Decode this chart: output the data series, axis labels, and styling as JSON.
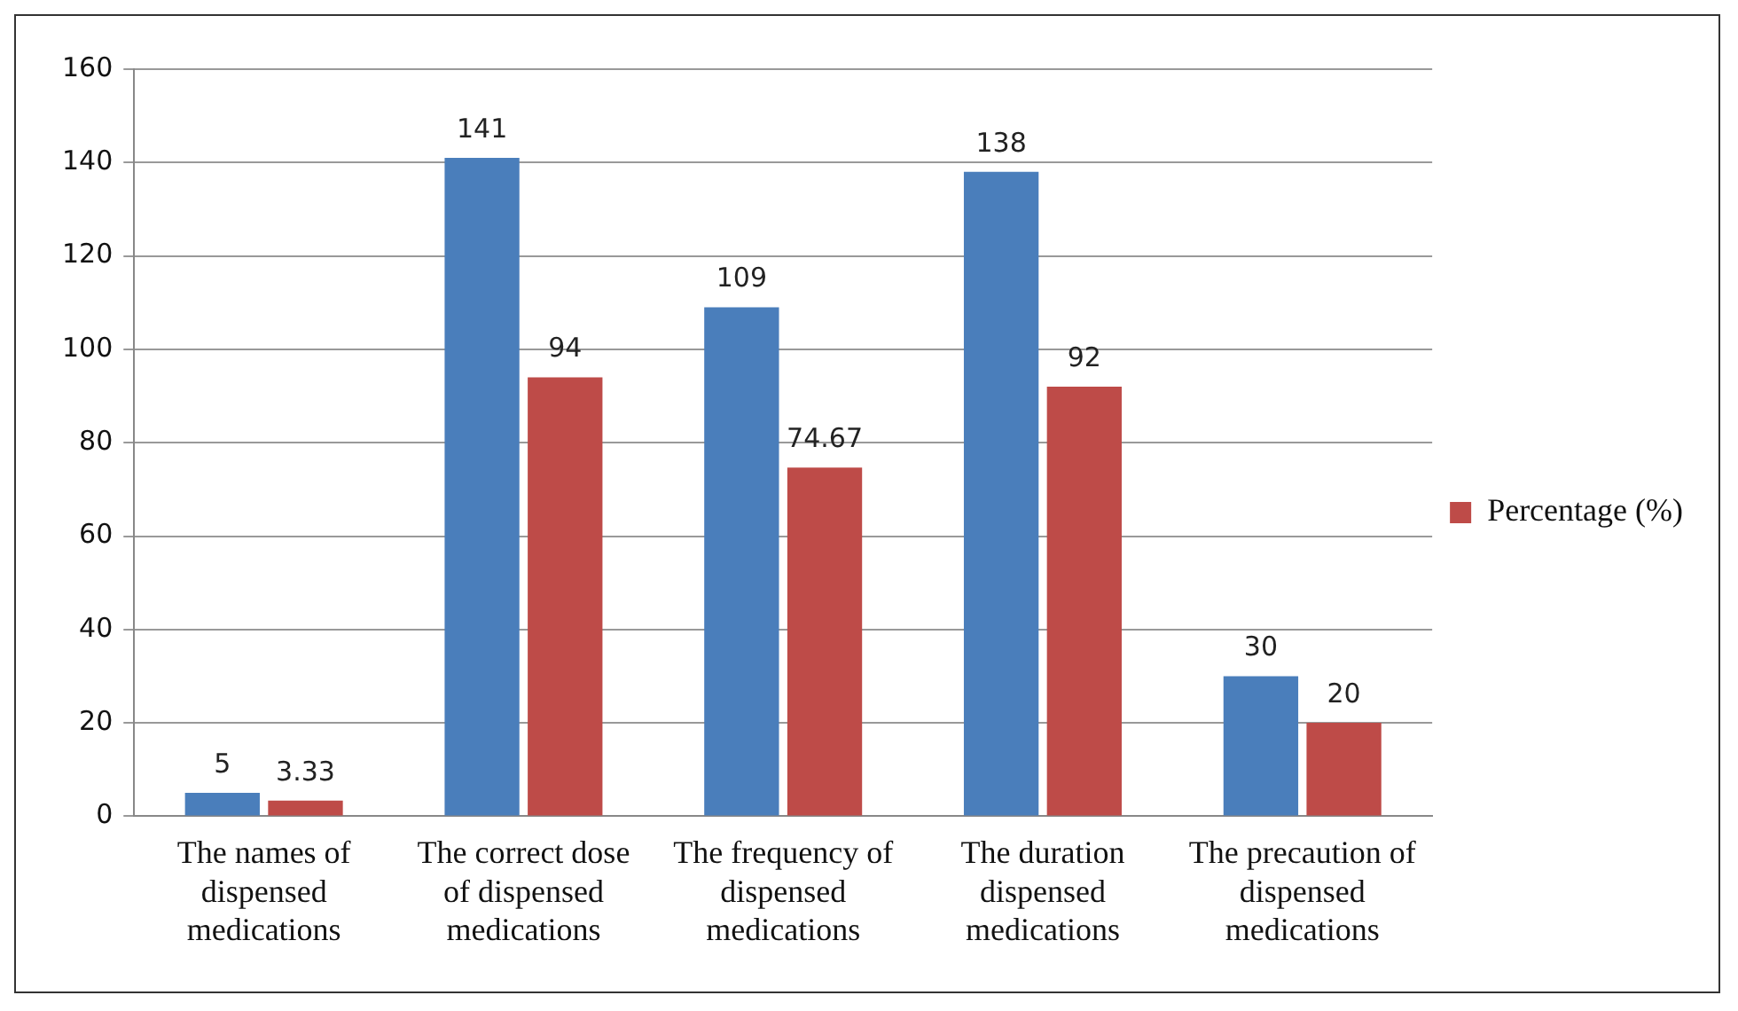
{
  "chart_data": {
    "type": "bar",
    "categories": [
      "The names of dispensed medications",
      "The correct dose of dispensed medications",
      "The frequency of dispensed medications",
      "The duration dispensed medications",
      "The precaution of dispensed medications"
    ],
    "series": [
      {
        "color": "#4a7ebb",
        "values": [
          5,
          141,
          109,
          138,
          30
        ]
      },
      {
        "name": "Percentage (%)",
        "color": "#be4b48",
        "values": [
          3.33,
          94,
          74.67,
          92,
          20
        ]
      }
    ],
    "ylim": [
      0,
      160
    ],
    "yticks": [
      0,
      20,
      40,
      60,
      80,
      100,
      120,
      140,
      160
    ],
    "grid": "y",
    "legend": "right",
    "data_labels": true
  }
}
